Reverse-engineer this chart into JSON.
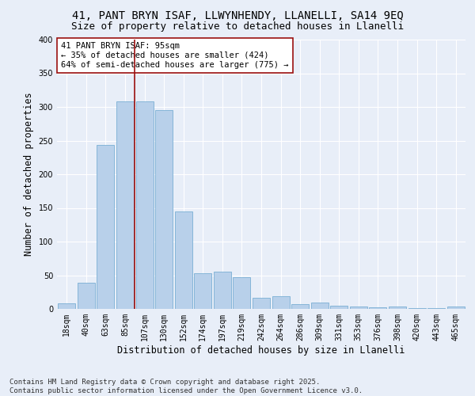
{
  "title_line1": "41, PANT BRYN ISAF, LLWYNHENDY, LLANELLI, SA14 9EQ",
  "title_line2": "Size of property relative to detached houses in Llanelli",
  "xlabel": "Distribution of detached houses by size in Llanelli",
  "ylabel": "Number of detached properties",
  "categories": [
    "18sqm",
    "40sqm",
    "63sqm",
    "85sqm",
    "107sqm",
    "130sqm",
    "152sqm",
    "174sqm",
    "197sqm",
    "219sqm",
    "242sqm",
    "264sqm",
    "286sqm",
    "309sqm",
    "331sqm",
    "353sqm",
    "376sqm",
    "398sqm",
    "420sqm",
    "443sqm",
    "465sqm"
  ],
  "values": [
    8,
    39,
    244,
    308,
    308,
    295,
    145,
    53,
    55,
    47,
    17,
    19,
    7,
    10,
    5,
    4,
    2,
    3,
    1,
    1,
    4
  ],
  "bar_color": "#b8d0ea",
  "bar_edge_color": "#7aafd4",
  "vline_x": 3.5,
  "vline_color": "#9b1010",
  "annotation_text": "41 PANT BRYN ISAF: 95sqm\n← 35% of detached houses are smaller (424)\n64% of semi-detached houses are larger (775) →",
  "annotation_box_color": "#ffffff",
  "annotation_border_color": "#9b1010",
  "ylim": [
    0,
    400
  ],
  "yticks": [
    0,
    50,
    100,
    150,
    200,
    250,
    300,
    350,
    400
  ],
  "bg_color": "#e8eef8",
  "plot_bg_color": "#e8eef8",
  "footer_text": "Contains HM Land Registry data © Crown copyright and database right 2025.\nContains public sector information licensed under the Open Government Licence v3.0.",
  "grid_color": "#ffffff",
  "title_fontsize": 10,
  "subtitle_fontsize": 9,
  "axis_label_fontsize": 8.5,
  "tick_fontsize": 7,
  "annotation_fontsize": 7.5,
  "footer_fontsize": 6.5
}
